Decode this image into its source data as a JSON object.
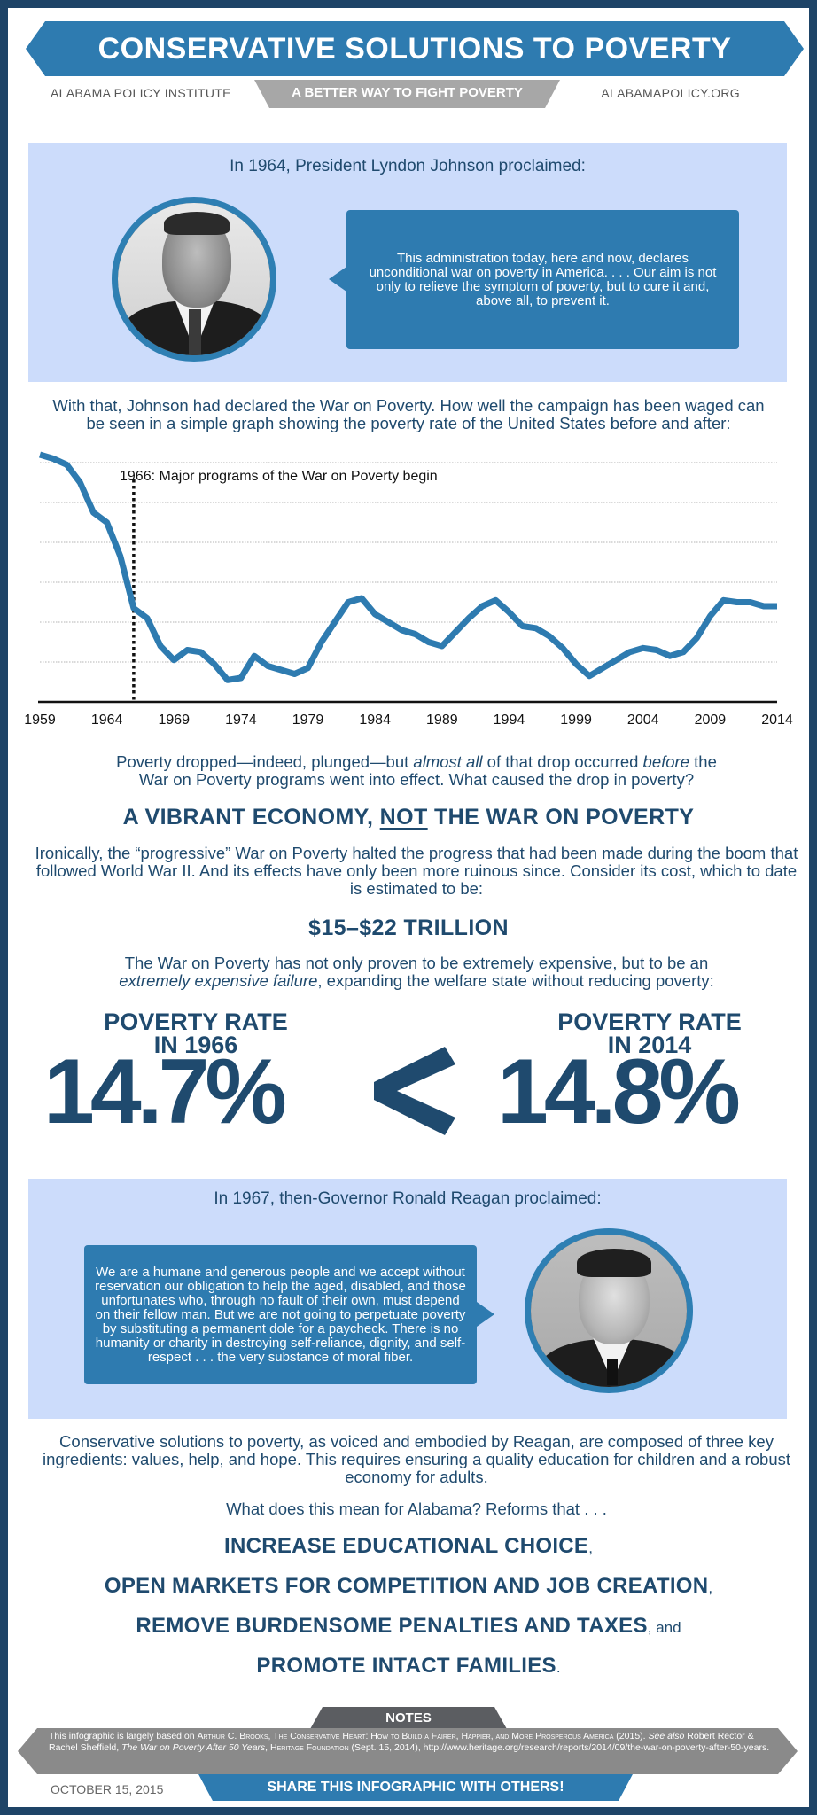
{
  "header": {
    "title": "CONSERVATIVE SOLUTIONS TO POVERTY",
    "left": "ALABAMA POLICY INSTITUTE",
    "center": "A BETTER WAY TO FIGHT POVERTY",
    "right": "ALABAMAPOLICY.ORG"
  },
  "johnson": {
    "heading": "In 1964, President Lyndon Johnson proclaimed:",
    "quote": "This administration today, here and now, declares unconditional war on poverty in America. . . . Our aim is not only to relieve the symptom of poverty, but to cure it and, above all, to prevent it."
  },
  "intro": "With that, Johnson had declared the War on Poverty. How well the campaign has been waged can be seen in a simple graph showing the poverty rate of the United States before and after:",
  "chart_data": {
    "type": "line",
    "title": "",
    "xlabel": "",
    "ylabel": "",
    "x_ticks": [
      "1959",
      "1964",
      "1969",
      "1974",
      "1979",
      "1984",
      "1989",
      "1994",
      "1999",
      "2004",
      "2009",
      "2014"
    ],
    "annotation": "1966: Major programs of the War on Poverty begin",
    "annotation_x": 1966,
    "grid": true,
    "y_axis_labels_shown": false,
    "ylim_approx": [
      10,
      22
    ],
    "series": [
      {
        "name": "US poverty rate (%)",
        "x": [
          1959,
          1960,
          1961,
          1962,
          1963,
          1964,
          1965,
          1966,
          1967,
          1968,
          1969,
          1970,
          1971,
          1972,
          1973,
          1974,
          1975,
          1976,
          1977,
          1978,
          1979,
          1980,
          1981,
          1982,
          1983,
          1984,
          1985,
          1986,
          1987,
          1988,
          1989,
          1990,
          1991,
          1992,
          1993,
          1994,
          1995,
          1996,
          1997,
          1998,
          1999,
          2000,
          2001,
          2002,
          2003,
          2004,
          2005,
          2006,
          2007,
          2008,
          2009,
          2010,
          2011,
          2012,
          2013,
          2014
        ],
        "values": [
          22.4,
          22.2,
          21.9,
          21.0,
          19.5,
          19.0,
          17.3,
          14.7,
          14.2,
          12.8,
          12.1,
          12.6,
          12.5,
          11.9,
          11.1,
          11.2,
          12.3,
          11.8,
          11.6,
          11.4,
          11.7,
          13.0,
          14.0,
          15.0,
          15.2,
          14.4,
          14.0,
          13.6,
          13.4,
          13.0,
          12.8,
          13.5,
          14.2,
          14.8,
          15.1,
          14.5,
          13.8,
          13.7,
          13.3,
          12.7,
          11.9,
          11.3,
          11.7,
          12.1,
          12.5,
          12.7,
          12.6,
          12.3,
          12.5,
          13.2,
          14.3,
          15.1,
          15.0,
          15.0,
          14.8,
          14.8
        ]
      }
    ],
    "line_color": "#2e7bb0"
  },
  "explanation": {
    "line1_a": "Poverty dropped—indeed, plunged—but ",
    "line1_em1": "almost all",
    "line1_b": " of that drop occurred ",
    "line1_em2": "before",
    "line1_c": " the",
    "line2": "War on Poverty programs went into effect. What caused the drop in poverty?"
  },
  "answer": {
    "part1": "A VIBRANT ECONOMY, ",
    "underlined": "NOT",
    "part2": " THE WAR ON POVERTY"
  },
  "ironic": "Ironically, the “progressive” War on Poverty halted the progress that had been made during the boom that followed World War II. And its effects have only been more ruinous since. Consider its cost, which to date is estimated to be:",
  "cost": "$15–$22 TRILLION",
  "failure": {
    "line1": "The War on Poverty has not only proven to be extremely expensive, but to be an",
    "em": "extremely expensive failure",
    "rest": ", expanding the welfare state without reducing poverty:"
  },
  "rates": {
    "left_label_1": "POVERTY RATE",
    "left_label_2": "IN 1966",
    "left_value": "14.7%",
    "comparator": "<",
    "right_label_1": "POVERTY RATE",
    "right_label_2": "IN 2014",
    "right_value": "14.8%"
  },
  "reagan": {
    "heading": "In 1967, then-Governor Ronald Reagan proclaimed:",
    "quote": "We are a humane and generous people and we accept without reservation our obligation to help the aged, disabled, and those unfortunates who, through no fault of their own, must depend on their fellow man. But we are not going to perpetuate poverty by substituting a permanent dole for a paycheck. There is no humanity or charity in destroying self-reliance, dignity, and self-respect . . . the very substance of moral fiber."
  },
  "solutions": "Conservative solutions to poverty, as voiced and embodied by Reagan, are composed of three key ingredients: values, help, and hope. This requires ensuring a quality education for children and a robust economy for adults.",
  "alabama": "What does this mean for Alabama? Reforms that . . .",
  "reforms": [
    {
      "text": "INCREASE EDUCATIONAL CHOICE",
      "tail": ","
    },
    {
      "text": "OPEN MARKETS FOR COMPETITION AND JOB CREATION",
      "tail": ","
    },
    {
      "text": "REMOVE BURDENSOME PENALTIES AND TAXES",
      "tail": ", and"
    },
    {
      "text": "PROMOTE INTACT FAMILIES",
      "tail": "."
    }
  ],
  "footer": {
    "notes_label": "NOTES",
    "notes_a": "This infographic is largely based on ",
    "notes_sc1": "Arthur C. Brooks, The Conservative Heart: How to Build a Fairer, Happier, and More Prosperous America",
    "notes_b": " (2015). ",
    "notes_em1": "See also",
    "notes_c": " Robert Rector & Rachel Sheffield, ",
    "notes_em2": "The War on Poverty After 50 Years",
    "notes_d": ", ",
    "notes_sc2": "Heritage Foundation",
    "notes_e": " (Sept. 15, 2014), http://www.heritage.org/research/reports/2014/09/the-war-on-poverty-after-50-years.",
    "date": "OCTOBER 15, 2015",
    "share": "SHARE THIS INFOGRAPHIC WITH OTHERS!"
  },
  "colors": {
    "navy": "#1f4a6e",
    "frame": "#1e4467",
    "blue": "#2e7bb0",
    "panel": "#ccdcfb",
    "gray_band": "#8a8a8a",
    "dark_gray": "#5b5d61"
  }
}
